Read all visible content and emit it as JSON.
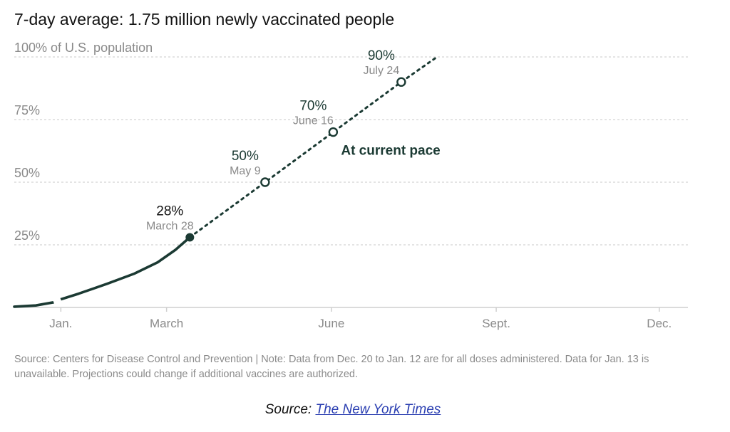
{
  "title": "7-day average: 1.75 million newly vaccinated people",
  "chart_data": {
    "type": "line",
    "title": "7-day average: 1.75 million newly vaccinated people",
    "xlabel": "",
    "ylabel": "",
    "y_tick_labels": [
      {
        "value": 100,
        "label": "100% of U.S. population"
      },
      {
        "value": 75,
        "label": "75%"
      },
      {
        "value": 50,
        "label": "50%"
      },
      {
        "value": 25,
        "label": "25%"
      }
    ],
    "x_tick_labels": [
      {
        "date": "2021-01-15",
        "label": "Jan."
      },
      {
        "date": "2021-03-15",
        "label": "March"
      },
      {
        "date": "2021-06-15",
        "label": "June"
      },
      {
        "date": "2021-09-15",
        "label": "Sept."
      },
      {
        "date": "2021-12-15",
        "label": "Dec."
      }
    ],
    "xlim": [
      "2020-12-20",
      "2021-12-31"
    ],
    "ylim": [
      0,
      100
    ],
    "grid": true,
    "series": [
      {
        "style": "solid",
        "points": [
          {
            "x": "2020-12-20",
            "y": 0.3
          },
          {
            "x": "2021-01-01",
            "y": 0.8
          },
          {
            "x": "2021-01-12",
            "y": 2.2
          },
          {
            "x": "2021-01-14",
            "y": 3.0
          },
          {
            "x": "2021-01-25",
            "y": 5.5
          },
          {
            "x": "2021-02-10",
            "y": 9.5
          },
          {
            "x": "2021-02-25",
            "y": 13.5
          },
          {
            "x": "2021-03-10",
            "y": 18.0
          },
          {
            "x": "2021-03-20",
            "y": 23.0
          },
          {
            "x": "2021-03-28",
            "y": 28.0
          }
        ]
      },
      {
        "style": "dotted",
        "points": [
          {
            "x": "2021-03-28",
            "y": 28.0
          },
          {
            "x": "2021-05-09",
            "y": 50.0
          },
          {
            "x": "2021-06-16",
            "y": 70.0
          },
          {
            "x": "2021-07-24",
            "y": 90.0
          },
          {
            "x": "2021-08-13",
            "y": 100.0
          }
        ]
      }
    ],
    "annotations": [
      {
        "x": "2021-03-28",
        "y": 28,
        "pct": "28%",
        "date": "March 28",
        "marker": "filled"
      },
      {
        "x": "2021-05-09",
        "y": 50,
        "pct": "50%",
        "date": "May 9",
        "marker": "open"
      },
      {
        "x": "2021-06-16",
        "y": 70,
        "pct": "70%",
        "date": "June 16",
        "marker": "open"
      },
      {
        "x": "2021-07-24",
        "y": 90,
        "pct": "90%",
        "date": "July 24",
        "marker": "open"
      }
    ],
    "pace_label": "At current pace",
    "colors": {
      "line": "#1b3a33",
      "grid": "#d3d3d3",
      "axis": "#cfcfcf",
      "tick_text": "#8a8a8a",
      "label_dark": "#1b3a33",
      "label_black": "#121212"
    }
  },
  "source_note": "Source: Centers for Disease Control and Prevention | Note: Data from Dec. 20 to Jan. 12 are for all doses administered. Data for Jan. 13 is unavailable. Projections could change if additional vaccines are authorized.",
  "credit": {
    "prefix": "Source: ",
    "link_text": "The New York Times"
  }
}
